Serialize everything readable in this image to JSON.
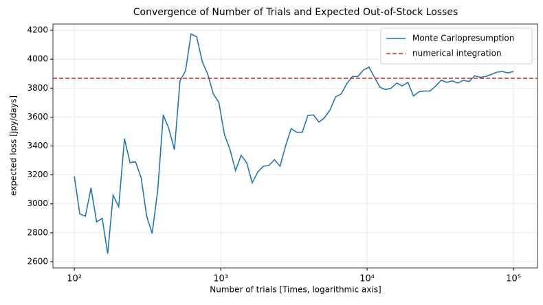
{
  "chart_data": {
    "type": "line",
    "title": "Convergence of Number of Trials and Expected Out-of-Stock Losses",
    "x_label": "Number of trials [Times, logarithmic axis]",
    "y_label": "expected loss [jpy/days]",
    "x_scale": "log",
    "grid": true,
    "legend": "upper right",
    "xlim": [
      71.4,
      145900
    ],
    "ylim": [
      2557,
      4243
    ],
    "xticks": [
      {
        "value": 100,
        "label": "10²"
      },
      {
        "value": 1000,
        "label": "10³"
      },
      {
        "value": 10000,
        "label": "10⁴"
      },
      {
        "value": 100000,
        "label": "10⁵"
      }
    ],
    "yticks": [
      2600,
      2800,
      3000,
      3200,
      3400,
      3600,
      3800,
      4000,
      4200
    ],
    "x": [
      100,
      109,
      119,
      130,
      142,
      155,
      169,
      184,
      201,
      220,
      240,
      262,
      286,
      312,
      340,
      371,
      405,
      442,
      483,
      527,
      575,
      627,
      685,
      747,
      816,
      890,
      972,
      1060,
      1157,
      1263,
      1378,
      1504,
      1642,
      1792,
      1956,
      2134,
      2329,
      2542,
      2775,
      3028,
      3305,
      3607,
      3937,
      4296,
      4689,
      5117,
      5585,
      6095,
      6652,
      7260,
      7924,
      8648,
      9435,
      10296,
      11237,
      12264,
      13385,
      14608,
      15943,
      17400,
      18990,
      20725,
      22620,
      24687,
      26943,
      29405,
      32092,
      35025,
      38226,
      41719,
      45532,
      49693,
      54234,
      59190,
      64600,
      70502,
      76945,
      83977,
      91651,
      100000
    ],
    "series": [
      {
        "name": "Monte Carlopresumption",
        "color": "#1f77b4",
        "values": [
          3190,
          2930,
          2915,
          3110,
          2875,
          2900,
          2655,
          3060,
          2980,
          3450,
          3285,
          3290,
          3180,
          2915,
          2795,
          3090,
          3615,
          3520,
          3375,
          3850,
          3920,
          4175,
          4155,
          3985,
          3895,
          3760,
          3700,
          3480,
          3375,
          3230,
          3335,
          3285,
          3145,
          3220,
          3260,
          3265,
          3305,
          3260,
          3400,
          3520,
          3495,
          3495,
          3610,
          3615,
          3565,
          3595,
          3650,
          3740,
          3760,
          3830,
          3880,
          3880,
          3925,
          3945,
          3875,
          3805,
          3790,
          3800,
          3835,
          3815,
          3840,
          3745,
          3775,
          3780,
          3780,
          3815,
          3855,
          3840,
          3850,
          3835,
          3855,
          3845,
          3885,
          3875,
          3880,
          3895,
          3910,
          3915,
          3905,
          3915
        ]
      }
    ],
    "reference_line": {
      "name": "numerical integration",
      "color": "#d62728",
      "value": 3868
    }
  }
}
